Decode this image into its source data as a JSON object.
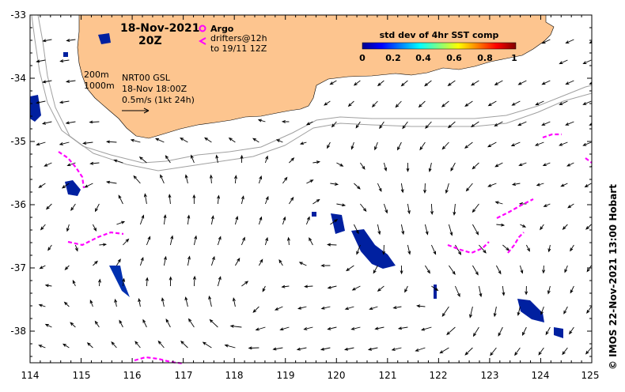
{
  "header": {
    "date": "18-Nov-2021",
    "time": "20Z",
    "argo_label": "Argo",
    "drifters_line1": "drifters@12h",
    "drifters_line2": "to 19/11 12Z"
  },
  "legend": {
    "depth_200": "200m",
    "depth_1000": "1000m",
    "product": "NRT00 GSL",
    "product_time": "18-Nov 18:00Z",
    "scale_text": "0.5m/s (1kt 24h)"
  },
  "colorbar": {
    "title": "std dev of 4hr SST comp",
    "ticks": [
      "0",
      "0.2",
      "0.4",
      "0.6",
      "0.8",
      "1"
    ],
    "colors": [
      "#00008f",
      "#0000ff",
      "#0080ff",
      "#00ffff",
      "#80ff80",
      "#ffff00",
      "#ff8000",
      "#ff0000",
      "#800000"
    ]
  },
  "axes": {
    "x_ticks": [
      "114",
      "115",
      "116",
      "117",
      "118",
      "119",
      "120",
      "121",
      "122",
      "123",
      "124",
      "125"
    ],
    "y_ticks": [
      "-33",
      "-34",
      "-35",
      "-36",
      "-37",
      "-38"
    ],
    "x_range": [
      114,
      125
    ],
    "y_range": [
      -38.5,
      -33
    ]
  },
  "credit": "© IMOS 22-Nov-2021 13:00 Hobart",
  "colors": {
    "land": "#fdc58f",
    "drifter": "#ff00ff",
    "isobath": "#a0a0a0",
    "arrow": "#000000"
  }
}
